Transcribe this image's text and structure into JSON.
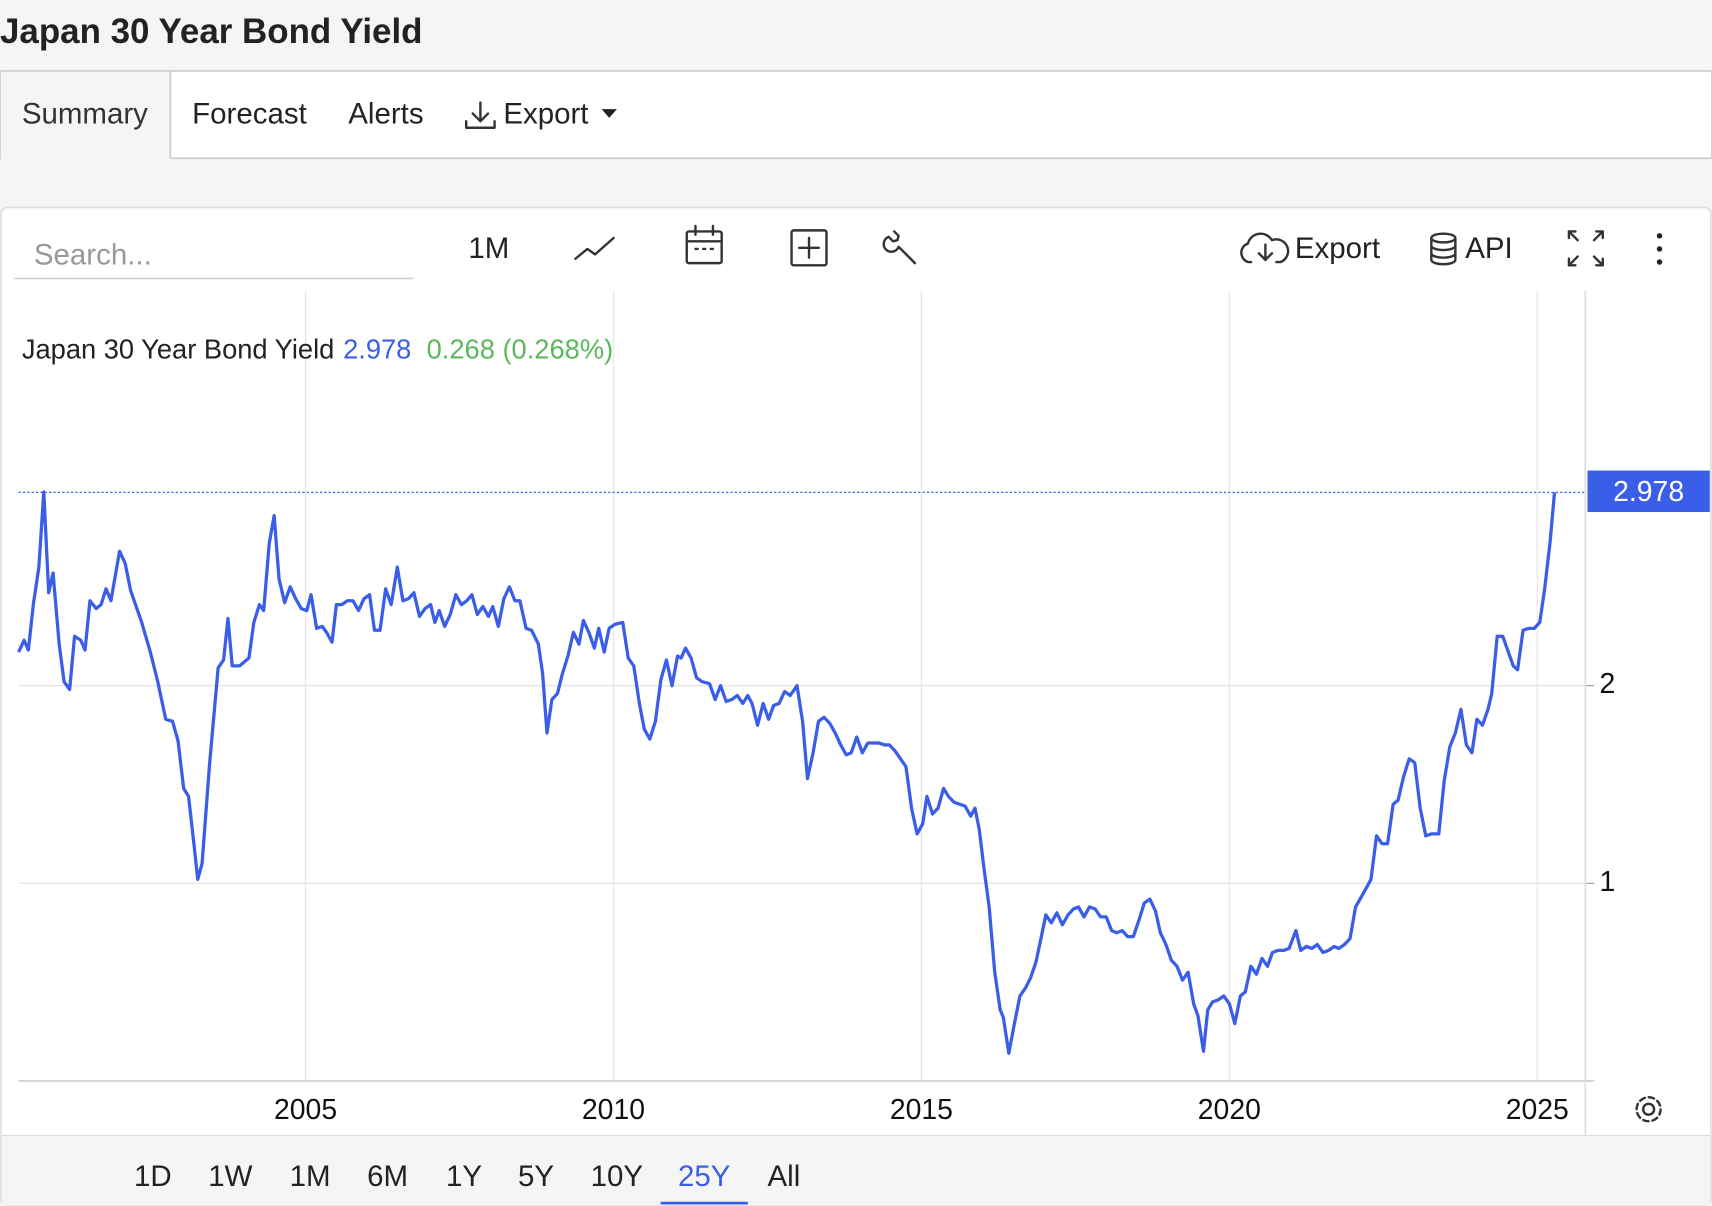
{
  "header": {
    "title": "Japan 30 Year Bond Yield"
  },
  "tabs": [
    "Summary",
    "Forecast",
    "Alerts",
    "Export"
  ],
  "toolbar": {
    "search_placeholder": "Search...",
    "interval": "1M",
    "export": "Export",
    "api": "API"
  },
  "chart_data": {
    "type": "line",
    "last_value": 2.978,
    "change_label": "0.268 (0.268%)",
    "x": [
      2000.34,
      2000.43,
      2000.5,
      2000.58,
      2000.67,
      2000.75,
      2000.83,
      2000.9,
      2001.0,
      2001.08,
      2001.17,
      2001.25,
      2001.35,
      2001.42,
      2001.5,
      2001.6,
      2001.68,
      2001.76,
      2001.84,
      2001.98,
      2002.07,
      2002.16,
      2002.34,
      2002.48,
      2002.6,
      2002.73,
      2002.84,
      2002.93,
      2003.02,
      2003.1,
      2003.19,
      2003.25,
      2003.32,
      2003.44,
      2003.58,
      2003.67,
      2003.74,
      2003.81,
      2003.93,
      2004.08,
      2004.16,
      2004.25,
      2004.32,
      2004.41,
      2004.49,
      2004.57,
      2004.66,
      2004.75,
      2004.84,
      2004.93,
      2005.02,
      2005.09,
      2005.18,
      2005.27,
      2005.34,
      2005.43,
      2005.5,
      2005.59,
      2005.68,
      2005.77,
      2005.86,
      2005.95,
      2006.04,
      2006.12,
      2006.21,
      2006.3,
      2006.39,
      2006.49,
      2006.58,
      2006.67,
      2006.76,
      2006.85,
      2006.94,
      2007.03,
      2007.1,
      2007.17,
      2007.26,
      2007.35,
      2007.44,
      2007.53,
      2007.62,
      2007.7,
      2007.79,
      2007.88,
      2007.97,
      2008.04,
      2008.13,
      2008.22,
      2008.31,
      2008.4,
      2008.48,
      2008.58,
      2008.67,
      2008.78,
      2008.85,
      2008.92,
      2009.0,
      2009.09,
      2009.17,
      2009.26,
      2009.35,
      2009.44,
      2009.51,
      2009.6,
      2009.69,
      2009.76,
      2009.85,
      2009.93,
      2010.02,
      2010.15,
      2010.24,
      2010.33,
      2010.42,
      2010.5,
      2010.59,
      2010.68,
      2010.77,
      2010.86,
      2010.95,
      2011.04,
      2011.1,
      2011.17,
      2011.26,
      2011.35,
      2011.44,
      2011.56,
      2011.65,
      2011.74,
      2011.83,
      2011.92,
      2012.01,
      2012.1,
      2012.18,
      2012.25,
      2012.34,
      2012.43,
      2012.52,
      2012.6,
      2012.69,
      2012.78,
      2012.87,
      2012.98,
      2013.07,
      2013.15,
      2013.24,
      2013.33,
      2013.42,
      2013.51,
      2013.6,
      2013.69,
      2013.78,
      2013.86,
      2013.95,
      2014.04,
      2014.13,
      2014.22,
      2014.31,
      2014.4,
      2014.48,
      2014.57,
      2014.66,
      2014.75,
      2014.84,
      2014.93,
      2015.02,
      2015.09,
      2015.18,
      2015.27,
      2015.36,
      2015.44,
      2015.53,
      2015.62,
      2015.71,
      2015.8,
      2015.87,
      2015.94,
      2016.01,
      2016.1,
      2016.19,
      2016.28,
      2016.33,
      2016.42,
      2016.51,
      2016.6,
      2016.69,
      2016.77,
      2016.86,
      2016.94,
      2017.02,
      2017.11,
      2017.2,
      2017.29,
      2017.38,
      2017.47,
      2017.55,
      2017.64,
      2017.73,
      2017.82,
      2017.91,
      2018.0,
      2018.09,
      2018.17,
      2018.26,
      2018.35,
      2018.44,
      2018.53,
      2018.62,
      2018.71,
      2018.8,
      2018.88,
      2018.97,
      2019.06,
      2019.15,
      2019.24,
      2019.33,
      2019.42,
      2019.49,
      2019.58,
      2019.65,
      2019.73,
      2019.82,
      2019.91,
      2020.0,
      2020.09,
      2020.18,
      2020.26,
      2020.35,
      2020.44,
      2020.53,
      2020.62,
      2020.7,
      2020.79,
      2020.88,
      2020.97,
      2021.08,
      2021.16,
      2021.25,
      2021.34,
      2021.43,
      2021.52,
      2021.61,
      2021.7,
      2021.78,
      2021.87,
      2021.96,
      2022.05,
      2022.14,
      2022.23,
      2022.3,
      2022.39,
      2022.48,
      2022.57,
      2022.66,
      2022.74,
      2022.83,
      2022.92,
      2023.01,
      2023.1,
      2023.19,
      2023.28,
      2023.4,
      2023.49,
      2023.58,
      2023.67,
      2023.76,
      2023.85,
      2023.94,
      2024.02,
      2024.11,
      2024.2,
      2024.26,
      2024.35,
      2024.44,
      2024.52,
      2024.61,
      2024.68,
      2024.77,
      2024.86,
      2024.95,
      2025.04,
      2025.12,
      2025.21,
      2025.28
    ],
    "series": [
      {
        "name": "Japan 30 Year Bond Yield",
        "color": "#3a5ee8",
        "values": [
          2.17,
          2.23,
          2.18,
          2.41,
          2.6,
          2.98,
          2.47,
          2.57,
          2.21,
          2.02,
          1.98,
          2.25,
          2.23,
          2.18,
          2.43,
          2.39,
          2.41,
          2.49,
          2.43,
          2.68,
          2.62,
          2.48,
          2.32,
          2.17,
          2.02,
          1.83,
          1.82,
          1.72,
          1.48,
          1.44,
          1.19,
          1.02,
          1.1,
          1.6,
          2.09,
          2.13,
          2.34,
          2.1,
          2.1,
          2.14,
          2.32,
          2.41,
          2.38,
          2.72,
          2.86,
          2.54,
          2.42,
          2.5,
          2.44,
          2.39,
          2.38,
          2.46,
          2.29,
          2.3,
          2.27,
          2.22,
          2.41,
          2.41,
          2.43,
          2.43,
          2.38,
          2.44,
          2.46,
          2.28,
          2.28,
          2.49,
          2.41,
          2.6,
          2.43,
          2.44,
          2.47,
          2.35,
          2.39,
          2.41,
          2.32,
          2.38,
          2.3,
          2.36,
          2.46,
          2.41,
          2.43,
          2.46,
          2.36,
          2.4,
          2.35,
          2.4,
          2.3,
          2.44,
          2.5,
          2.43,
          2.43,
          2.29,
          2.28,
          2.21,
          2.06,
          1.76,
          1.93,
          1.96,
          2.06,
          2.15,
          2.27,
          2.21,
          2.33,
          2.27,
          2.19,
          2.29,
          2.17,
          2.29,
          2.31,
          2.32,
          2.14,
          2.1,
          1.91,
          1.78,
          1.73,
          1.82,
          2.03,
          2.13,
          2.0,
          2.15,
          2.14,
          2.19,
          2.14,
          2.04,
          2.02,
          2.01,
          1.93,
          2.0,
          1.92,
          1.93,
          1.95,
          1.91,
          1.95,
          1.91,
          1.8,
          1.91,
          1.83,
          1.9,
          1.91,
          1.97,
          1.95,
          2.0,
          1.82,
          1.53,
          1.66,
          1.82,
          1.84,
          1.81,
          1.76,
          1.7,
          1.65,
          1.66,
          1.74,
          1.66,
          1.71,
          1.71,
          1.71,
          1.7,
          1.7,
          1.67,
          1.63,
          1.59,
          1.38,
          1.25,
          1.3,
          1.44,
          1.35,
          1.38,
          1.48,
          1.44,
          1.41,
          1.4,
          1.39,
          1.34,
          1.38,
          1.27,
          1.09,
          0.88,
          0.55,
          0.36,
          0.32,
          0.14,
          0.29,
          0.43,
          0.47,
          0.52,
          0.6,
          0.72,
          0.84,
          0.8,
          0.85,
          0.79,
          0.84,
          0.87,
          0.88,
          0.83,
          0.88,
          0.87,
          0.83,
          0.83,
          0.76,
          0.75,
          0.76,
          0.73,
          0.73,
          0.81,
          0.9,
          0.92,
          0.86,
          0.75,
          0.69,
          0.61,
          0.58,
          0.51,
          0.55,
          0.39,
          0.33,
          0.15,
          0.36,
          0.4,
          0.41,
          0.43,
          0.39,
          0.29,
          0.43,
          0.45,
          0.58,
          0.54,
          0.62,
          0.58,
          0.65,
          0.66,
          0.66,
          0.67,
          0.76,
          0.66,
          0.68,
          0.67,
          0.69,
          0.65,
          0.66,
          0.68,
          0.67,
          0.69,
          0.72,
          0.88,
          0.93,
          0.98,
          1.02,
          1.24,
          1.2,
          1.2,
          1.4,
          1.42,
          1.54,
          1.63,
          1.61,
          1.38,
          1.24,
          1.25,
          1.25,
          1.52,
          1.69,
          1.76,
          1.88,
          1.7,
          1.66,
          1.83,
          1.8,
          1.88,
          1.96,
          2.25,
          2.25,
          2.18,
          2.1,
          2.08,
          2.28,
          2.29,
          2.29,
          2.32,
          2.49,
          2.73,
          2.978
        ]
      }
    ],
    "xlim": [
      2000.34,
      2025.78
    ],
    "xticks": [
      2005,
      2010,
      2015,
      2020,
      2025
    ],
    "ylim": [
      0,
      4
    ],
    "yticks": [
      1,
      2
    ],
    "grid": true
  },
  "ranges": [
    "1D",
    "1W",
    "1M",
    "6M",
    "1Y",
    "5Y",
    "10Y",
    "25Y",
    "All"
  ],
  "active_range": 7
}
